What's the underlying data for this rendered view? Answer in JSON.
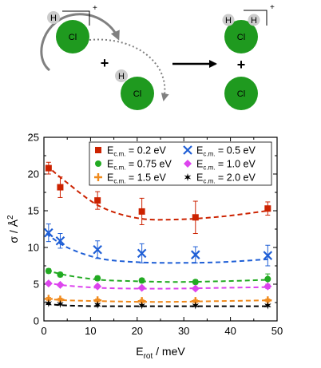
{
  "scheme": {
    "reactant_cation": {
      "h": "H",
      "cl": "Cl",
      "charge": "+"
    },
    "plus_left": "+",
    "reactant_neutral": {
      "h": "H",
      "cl": "Cl"
    },
    "product_cation": {
      "h1": "H",
      "h2": "H",
      "cl": "Cl",
      "charge": "+"
    },
    "plus_right": "+",
    "product_atom": {
      "cl": "Cl"
    },
    "colors": {
      "atom": "#1f9a1f",
      "hydrogen": "#cccccc",
      "arrow": "#000000",
      "curved_arrow": "#808080"
    }
  },
  "chart_data": {
    "type": "scatter",
    "title": "",
    "xlabel": "E",
    "xlabel_sub": "rot",
    "xlabel_unit": " / meV",
    "ylabel": "σ / Å",
    "ylabel_sup": "2",
    "xlim": [
      0,
      50
    ],
    "ylim": [
      0,
      25
    ],
    "xticks": [
      0,
      10,
      20,
      30,
      40,
      50
    ],
    "yticks": [
      0,
      5,
      10,
      15,
      20,
      25
    ],
    "grid": false,
    "legend_position": "top-right",
    "legend_prefix": "E",
    "legend_sub": "c.m.",
    "x": [
      1,
      3.5,
      11.5,
      21,
      32.5,
      48
    ],
    "series": [
      {
        "name": "= 0.2 eV",
        "marker": "square",
        "color": "#cc2200",
        "values": [
          20.8,
          18.2,
          16.4,
          14.9,
          14.1,
          15.3
        ],
        "errors": [
          0.8,
          1.4,
          1.2,
          1.8,
          2.2,
          0.9
        ],
        "fit": [
          21.2,
          18.8,
          15.6,
          14.0,
          13.8,
          14.2,
          15.0
        ]
      },
      {
        "name": "= 0.5 eV",
        "marker": "x",
        "color": "#1f5fd6",
        "values": [
          12.0,
          10.9,
          9.7,
          9.2,
          9.0,
          8.9
        ],
        "errors": [
          1.2,
          1.0,
          1.2,
          1.3,
          1.1,
          1.4
        ],
        "fit": [
          11.9,
          10.0,
          8.5,
          8.0,
          7.9,
          8.0,
          8.4
        ]
      },
      {
        "name": "= 0.75 eV",
        "marker": "circle",
        "color": "#22aa22",
        "values": [
          6.8,
          6.3,
          5.8,
          5.5,
          5.3,
          5.7
        ],
        "errors": [
          0.3,
          0.3,
          0.3,
          0.3,
          0.3,
          0.7
        ],
        "fit": [
          6.9,
          6.2,
          5.6,
          5.4,
          5.3,
          5.4,
          5.6
        ]
      },
      {
        "name": "= 1.0 eV",
        "marker": "diamond",
        "color": "#dd44ee",
        "values": [
          5.1,
          4.9,
          4.7,
          4.5,
          4.4,
          4.7
        ],
        "errors": [
          0.2,
          0.2,
          0.2,
          0.2,
          0.2,
          0.3
        ],
        "fit": [
          5.2,
          4.8,
          4.5,
          4.4,
          4.4,
          4.5,
          4.6
        ]
      },
      {
        "name": "= 1.5 eV",
        "marker": "plus",
        "color": "#f08a1c",
        "values": [
          3.0,
          2.9,
          2.8,
          2.7,
          2.7,
          2.8
        ],
        "errors": [
          0.2,
          0.2,
          0.2,
          0.2,
          0.2,
          0.2
        ],
        "fit": [
          3.0,
          2.8,
          2.7,
          2.6,
          2.6,
          2.7,
          2.8
        ]
      },
      {
        "name": "= 2.0 eV",
        "marker": "star",
        "color": "#000000",
        "values": [
          2.4,
          2.3,
          2.2,
          2.1,
          2.1,
          2.1
        ],
        "errors": [
          0.1,
          0.1,
          0.1,
          0.1,
          0.1,
          0.1
        ],
        "fit": [
          2.3,
          2.1,
          2.0,
          2.0,
          2.0,
          2.0,
          2.0
        ]
      }
    ],
    "fit_x": [
      0.5,
      5,
      12,
      20,
      28,
      38,
      48
    ]
  }
}
